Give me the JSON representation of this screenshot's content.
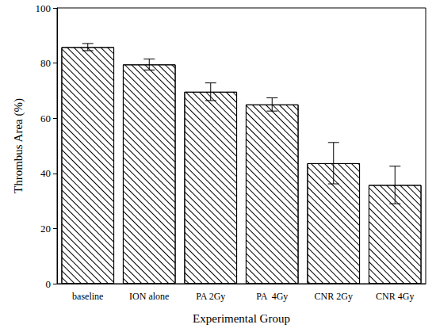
{
  "chart_data": {
    "type": "bar",
    "x_label": "Experimental Group",
    "y_label": "Thrombus Area (%)",
    "categories": [
      "baseline",
      "ION alone",
      "PA 2Gy",
      "PA  4Gy",
      "CNR 2Gy",
      "CNR 4Gy"
    ],
    "values": [
      85.8,
      79.5,
      69.6,
      65.0,
      43.7,
      35.8
    ],
    "errors": [
      1.3,
      2.0,
      3.2,
      2.4,
      7.5,
      6.8
    ],
    "color": "#000000",
    "ylim": [
      0,
      100
    ],
    "yticks": [
      0,
      20,
      40,
      60,
      80,
      100
    ],
    "grid": false
  }
}
